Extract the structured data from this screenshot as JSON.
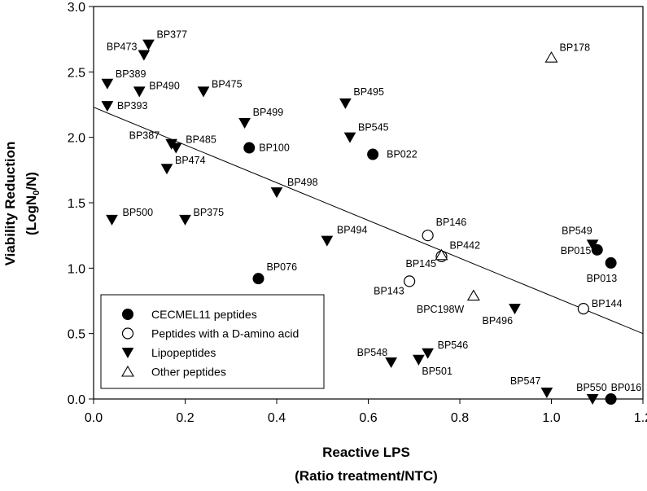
{
  "chart_data": {
    "type": "scatter",
    "xlabel_line1": "Reactive LPS",
    "xlabel_line2": "(Ratio treatment/NTC)",
    "ylabel_line1": "Viability Reduction",
    "ylabel_line2_prefix": "(LogN",
    "ylabel_line2_sub": "0",
    "ylabel_line2_suffix": "/N)",
    "xlim": [
      0.0,
      1.2
    ],
    "ylim": [
      0.0,
      3.0
    ],
    "x_ticks": [
      "0.0",
      "0.2",
      "0.4",
      "0.6",
      "0.8",
      "1.0",
      "1.2"
    ],
    "y_ticks": [
      "0.0",
      "0.5",
      "1.0",
      "1.5",
      "2.0",
      "2.5",
      "3.0"
    ],
    "regression_line": {
      "x": [
        0.0,
        1.2
      ],
      "y": [
        2.23,
        0.5
      ]
    },
    "legend": {
      "placement": "bottom-left",
      "entries": [
        {
          "label": "CECMEL11 peptides",
          "marker": "filled-circle"
        },
        {
          "label": "Peptides with a D-amino acid",
          "marker": "open-circle"
        },
        {
          "label": "Lipopeptides",
          "marker": "filled-triangle-down"
        },
        {
          "label": "Other peptides",
          "marker": "open-triangle-up"
        }
      ]
    },
    "series": [
      {
        "name": "CECMEL11 peptides",
        "marker": "filled-circle",
        "points": [
          {
            "label": "BP100",
            "x": 0.34,
            "y": 1.92
          },
          {
            "label": "BP022",
            "x": 0.61,
            "y": 1.87
          },
          {
            "label": "BP076",
            "x": 0.36,
            "y": 0.92
          },
          {
            "label": "BP015",
            "x": 1.1,
            "y": 1.14
          },
          {
            "label": "BP013",
            "x": 1.13,
            "y": 1.04
          },
          {
            "label": "BP016",
            "x": 1.13,
            "y": 0.0
          }
        ]
      },
      {
        "name": "Peptides with a D-amino acid",
        "marker": "open-circle",
        "points": [
          {
            "label": "BP146",
            "x": 0.73,
            "y": 1.25
          },
          {
            "label": "BP145",
            "x": 0.76,
            "y": 1.09
          },
          {
            "label": "BP143",
            "x": 0.69,
            "y": 0.9
          },
          {
            "label": "BP144",
            "x": 1.07,
            "y": 0.69
          }
        ]
      },
      {
        "name": "Lipopeptides",
        "marker": "filled-triangle-down",
        "points": [
          {
            "label": "BP473",
            "x": 0.11,
            "y": 2.63
          },
          {
            "label": "BP377",
            "x": 0.12,
            "y": 2.71
          },
          {
            "label": "BP389",
            "x": 0.03,
            "y": 2.41
          },
          {
            "label": "BP490",
            "x": 0.1,
            "y": 2.35
          },
          {
            "label": "BP475",
            "x": 0.24,
            "y": 2.35
          },
          {
            "label": "BP393",
            "x": 0.03,
            "y": 2.24
          },
          {
            "label": "BP499",
            "x": 0.33,
            "y": 2.11
          },
          {
            "label": "BP495",
            "x": 0.55,
            "y": 2.26
          },
          {
            "label": "BP387",
            "x": 0.17,
            "y": 1.95
          },
          {
            "label": "BP485",
            "x": 0.18,
            "y": 1.92
          },
          {
            "label": "BP545",
            "x": 0.56,
            "y": 2.0
          },
          {
            "label": "BP474",
            "x": 0.16,
            "y": 1.76
          },
          {
            "label": "BP498",
            "x": 0.4,
            "y": 1.58
          },
          {
            "label": "BP500",
            "x": 0.04,
            "y": 1.37
          },
          {
            "label": "BP375",
            "x": 0.2,
            "y": 1.37
          },
          {
            "label": "BP494",
            "x": 0.51,
            "y": 1.21
          },
          {
            "label": "BP549",
            "x": 1.09,
            "y": 1.18
          },
          {
            "label": "BP496",
            "x": 0.92,
            "y": 0.69
          },
          {
            "label": "BP548",
            "x": 0.65,
            "y": 0.28
          },
          {
            "label": "BP546",
            "x": 0.73,
            "y": 0.35
          },
          {
            "label": "BP501",
            "x": 0.71,
            "y": 0.3
          },
          {
            "label": "BP547",
            "x": 0.99,
            "y": 0.05
          },
          {
            "label": "BP550",
            "x": 1.09,
            "y": 0.0
          }
        ]
      },
      {
        "name": "Other peptides",
        "marker": "open-triangle-up",
        "points": [
          {
            "label": "BP178",
            "x": 1.0,
            "y": 2.61
          },
          {
            "label": "BP442",
            "x": 0.76,
            "y": 1.1
          },
          {
            "label": "BPC198W",
            "x": 0.83,
            "y": 0.79
          }
        ]
      }
    ]
  }
}
